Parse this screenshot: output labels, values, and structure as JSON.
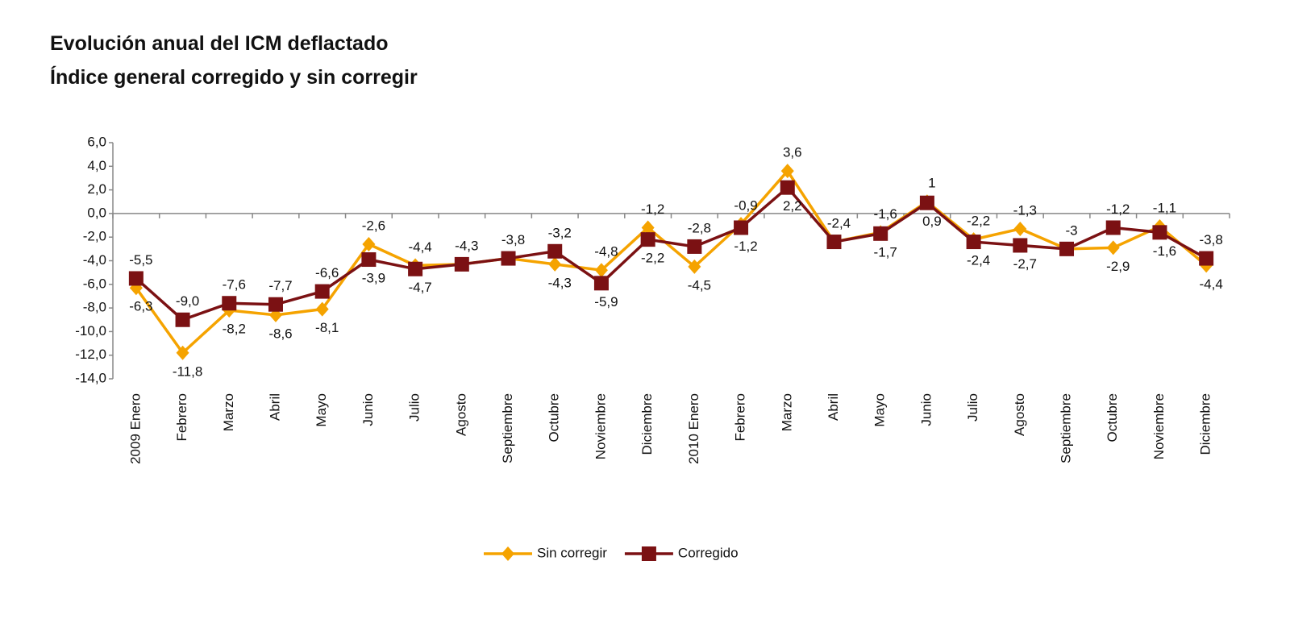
{
  "chart_data": {
    "type": "line",
    "title": "Evolución anual del ICM deflactado",
    "subtitle": "Índice general corregido y sin corregir",
    "categories": [
      "2009 Enero",
      "Febrero",
      "Marzo",
      "Abril",
      "Mayo",
      "Junio",
      "Julio",
      "Agosto",
      "Septiembre",
      "Octubre",
      "Noviembre",
      "Diciembre",
      "2010 Enero",
      "Febrero",
      "Marzo",
      "Abril",
      "Mayo",
      "Junio",
      "Julio",
      "Agosto",
      "Septiembre",
      "Octubre",
      "Noviembre",
      "Diciembre"
    ],
    "series": [
      {
        "name": "Sin corregir",
        "color": "#f5a300",
        "marker": "diamond",
        "values": [
          -6.3,
          -11.8,
          -8.2,
          -8.6,
          -8.1,
          -2.6,
          -4.4,
          -4.3,
          -3.8,
          -4.3,
          -4.8,
          -1.2,
          -4.5,
          -0.9,
          3.6,
          -2.4,
          -1.6,
          1,
          -2.2,
          -1.3,
          -3,
          -2.9,
          -1.1,
          -4.4
        ],
        "value_labels": [
          "-6,3",
          "-11,8",
          "-8,2",
          "-8,6",
          "-8,1",
          "-2,6",
          "-4,4",
          null,
          null,
          "-4,3",
          "-4,8",
          "-1,2",
          "-4,5",
          "-0,9",
          "3,6",
          null,
          "-1,6",
          "1",
          "-2,2",
          "-1,3",
          null,
          "-2,9",
          "-1,1",
          "-4,4"
        ]
      },
      {
        "name": "Corregido",
        "color": "#7b1113",
        "marker": "square",
        "values": [
          -5.5,
          -9.0,
          -7.6,
          -7.7,
          -6.6,
          -3.9,
          -4.7,
          -4.3,
          -3.8,
          -3.2,
          -5.9,
          -2.2,
          -2.8,
          -1.2,
          2.2,
          -2.4,
          -1.7,
          0.9,
          -2.4,
          -2.7,
          -3,
          -1.2,
          -1.6,
          -3.8
        ],
        "value_labels": [
          "-5,5",
          "-9,0",
          "-7,6",
          "-7,7",
          "-6,6",
          "-3,9",
          "-4,7",
          "-4,3",
          "-3,8",
          "-3,2",
          "-5,9",
          "-2,2",
          "-2,8",
          "-1,2",
          "2,2",
          "-2,4",
          "-1,7",
          "0,9",
          "-2,4",
          "-2,7",
          "-3",
          "-1,2",
          "-1,6",
          "-3,8"
        ]
      }
    ],
    "ylim": [
      -14,
      6
    ],
    "yticks": [
      {
        "value": 6,
        "label": "6,0"
      },
      {
        "value": 4,
        "label": "4,0"
      },
      {
        "value": 2,
        "label": "2,0"
      },
      {
        "value": 0,
        "label": "0,0"
      },
      {
        "value": -2,
        "label": "-2,0"
      },
      {
        "value": -4,
        "label": "-4,0"
      },
      {
        "value": -6,
        "label": "-6,0"
      },
      {
        "value": -8,
        "label": "-8,0"
      },
      {
        "value": -10,
        "label": "-10,0"
      },
      {
        "value": -12,
        "label": "-12,0"
      },
      {
        "value": -14,
        "label": "-14,0"
      }
    ],
    "legend": "bottom"
  }
}
